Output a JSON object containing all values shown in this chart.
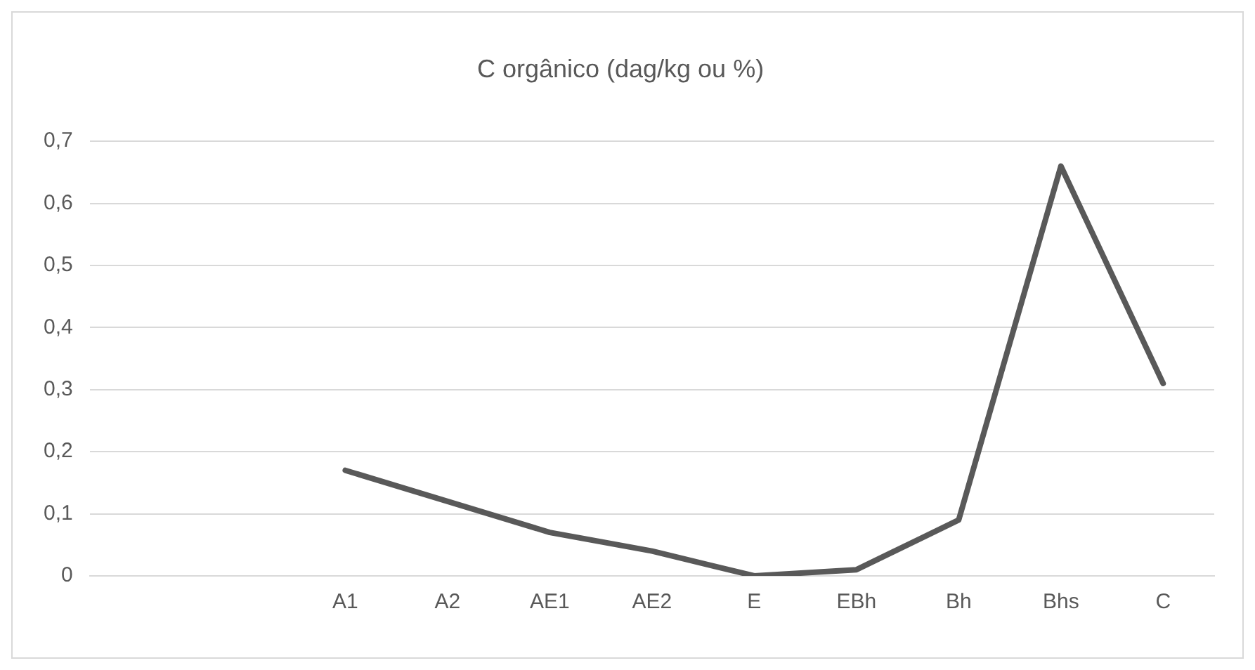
{
  "chart_data": {
    "type": "line",
    "title": "C orgânico (dag/kg ou %)",
    "categories": [
      null,
      null,
      "A1",
      "A2",
      "AE1",
      "AE2",
      "E",
      "EBh",
      "Bh",
      "Bhs",
      "C"
    ],
    "series": [
      {
        "color": "#595959",
        "values": [
          null,
          null,
          0.17,
          0.12,
          0.07,
          0.04,
          0,
          0.01,
          0.09,
          0.66,
          0.31
        ]
      }
    ],
    "ylim": [
      0,
      0.7
    ],
    "yticks": [
      {
        "value": 0,
        "label": "0"
      },
      {
        "value": 0.1,
        "label": "0,1"
      },
      {
        "value": 0.2,
        "label": "0,2"
      },
      {
        "value": 0.3,
        "label": "0,3"
      },
      {
        "value": 0.4,
        "label": "0,4"
      },
      {
        "value": 0.5,
        "label": "0,5"
      },
      {
        "value": 0.6,
        "label": "0,6"
      },
      {
        "value": 0.7,
        "label": "0,7"
      }
    ],
    "grid": "y",
    "legend": false,
    "marker": "none",
    "line_style": "solid"
  }
}
